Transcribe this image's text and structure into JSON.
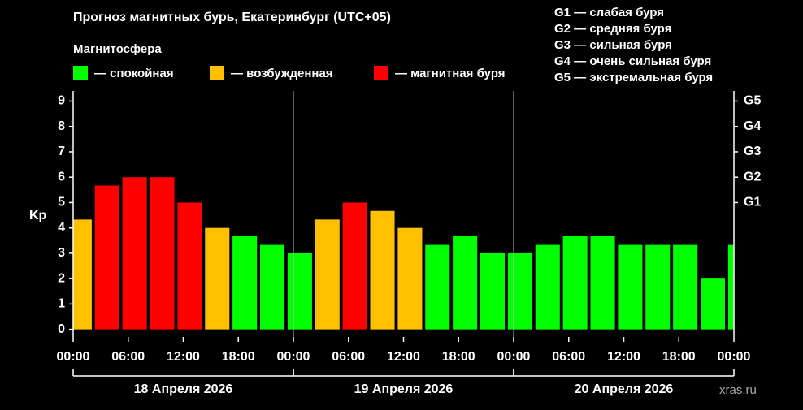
{
  "chart_data": {
    "type": "bar",
    "title": "Прогноз магнитных бурь, Екатеринбург (UTC+05)",
    "legend_title": "Магнитосфера",
    "legend": [
      {
        "label": "— спокойная",
        "color": "#00ff00"
      },
      {
        "label": "— возбужденная",
        "color": "#ffc000"
      },
      {
        "label": "— магнитная буря",
        "color": "#ff0000"
      }
    ],
    "scale_legend": [
      "G1 — слабая буря",
      "G2 — средняя буря",
      "G3 — сильная буря",
      "G4 — очень сильная буря",
      "G5 — экстремальная буря"
    ],
    "ylabel": "Kp",
    "watermark": "xras.ru",
    "x": [
      0.7,
      3.7,
      6.7,
      9.7,
      12.7,
      15.7,
      18.7,
      21.7,
      24.7,
      27.7,
      30.7,
      33.7,
      36.7,
      39.7,
      42.7,
      45.7,
      48.7,
      51.7,
      54.7,
      57.7,
      60.7,
      63.7,
      66.7,
      69.7,
      72.7
    ],
    "values": [
      4.33,
      5.67,
      6,
      6,
      5,
      4,
      3.67,
      3.33,
      3,
      4.33,
      5,
      4.67,
      4,
      3.33,
      3.67,
      3,
      3,
      3.33,
      3.67,
      3.67,
      3.33,
      3.33,
      3.33,
      2,
      3.33
    ],
    "colors": [
      "#ffc000",
      "#ff0000",
      "#ff0000",
      "#ff0000",
      "#ff0000",
      "#ffc000",
      "#00ff00",
      "#00ff00",
      "#00ff00",
      "#ffc000",
      "#ff0000",
      "#ffc000",
      "#ffc000",
      "#00ff00",
      "#00ff00",
      "#00ff00",
      "#00ff00",
      "#00ff00",
      "#00ff00",
      "#00ff00",
      "#00ff00",
      "#00ff00",
      "#00ff00",
      "#00ff00",
      "#00ff00"
    ],
    "xlim": [
      0,
      72
    ],
    "xticks": [
      {
        "value": 0,
        "label": "00:00"
      },
      {
        "value": 6,
        "label": "06:00"
      },
      {
        "value": 12,
        "label": "12:00"
      },
      {
        "value": 18,
        "label": "18:00"
      },
      {
        "value": 24,
        "label": "00:00"
      },
      {
        "value": 30,
        "label": "06:00"
      },
      {
        "value": 36,
        "label": "12:00"
      },
      {
        "value": 42,
        "label": "18:00"
      },
      {
        "value": 48,
        "label": "00:00"
      },
      {
        "value": 54,
        "label": "06:00"
      },
      {
        "value": 60,
        "label": "12:00"
      },
      {
        "value": 66,
        "label": "18:00"
      },
      {
        "value": 72,
        "label": "00:00"
      }
    ],
    "days": [
      {
        "label": "18 Апреля 2026",
        "start": 0,
        "end": 24
      },
      {
        "label": "19 Апреля 2026",
        "start": 24,
        "end": 48
      },
      {
        "label": "20 Апреля 2026",
        "start": 48,
        "end": 72
      }
    ],
    "ylim": [
      -0.3,
      9.4
    ],
    "yticks": [
      0,
      1,
      2,
      3,
      4,
      5,
      6,
      7,
      8,
      9
    ],
    "y2lim": [
      -0.3,
      9.4
    ],
    "y2ticks": [
      {
        "value": 5,
        "label": "G1"
      },
      {
        "value": 6,
        "label": "G2"
      },
      {
        "value": 7,
        "label": "G3"
      },
      {
        "value": 8,
        "label": "G4"
      },
      {
        "value": 9,
        "label": "G5"
      }
    ]
  }
}
